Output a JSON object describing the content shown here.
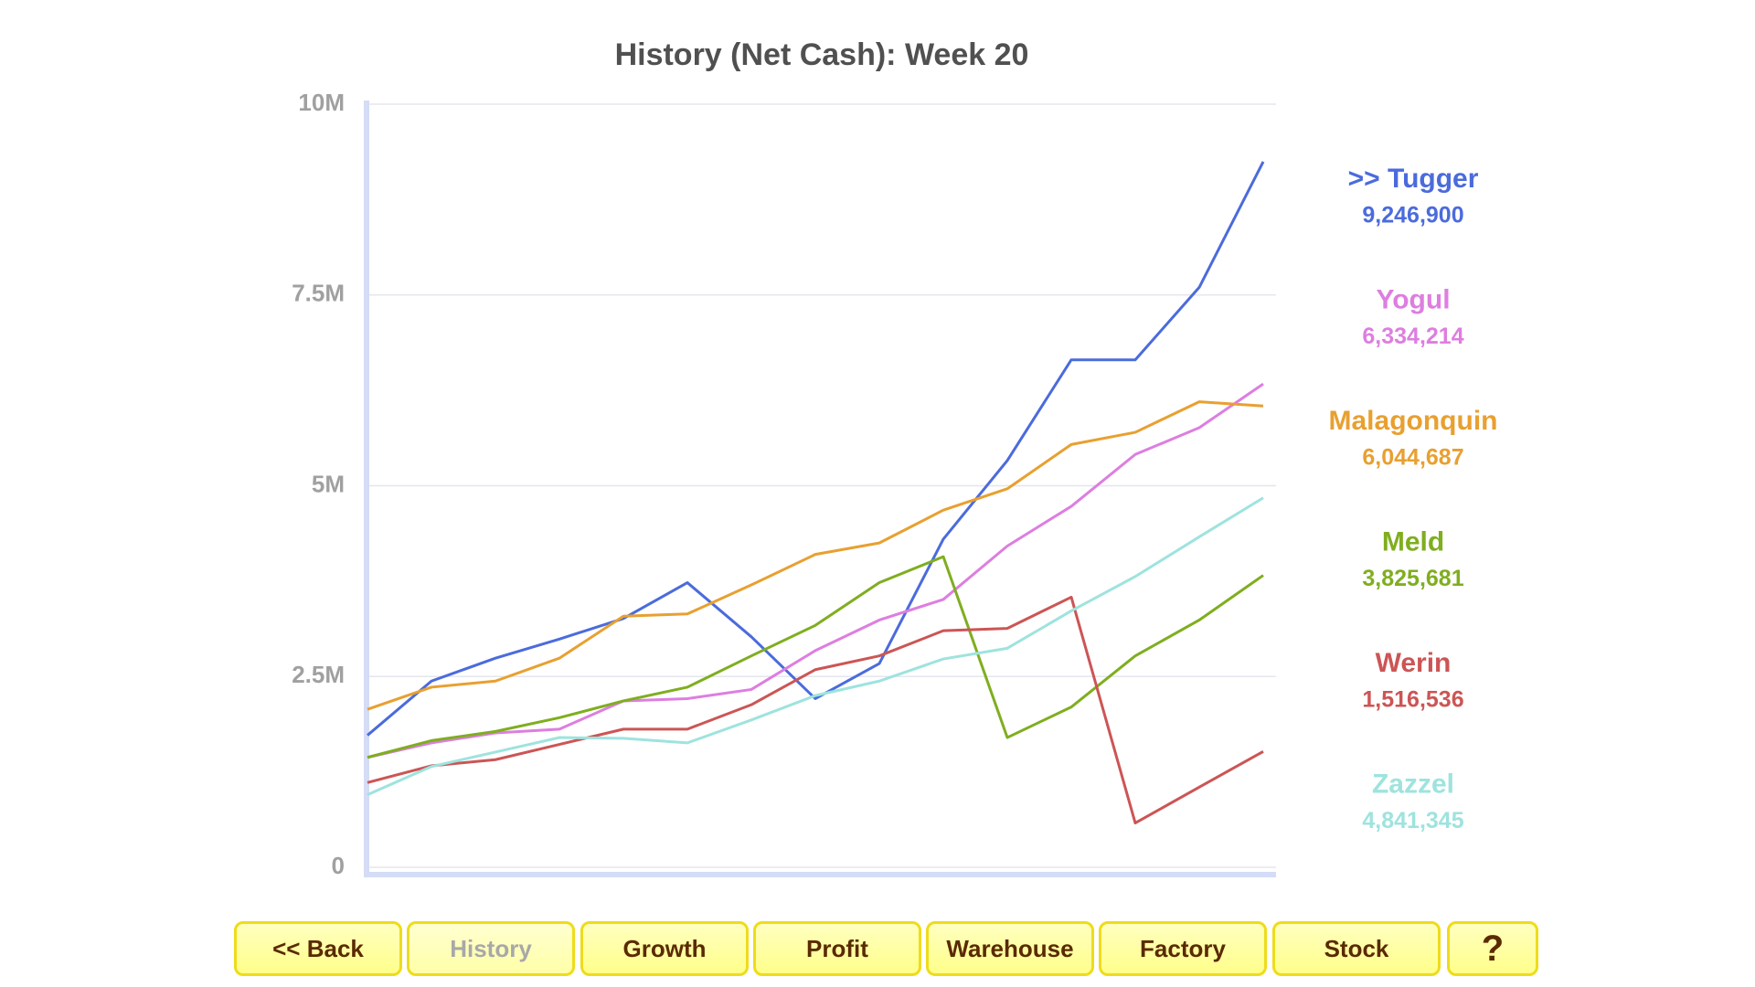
{
  "chart_data": {
    "type": "line",
    "title": "History (Net Cash): Week 20",
    "categories": [
      null,
      null,
      null,
      null,
      null,
      null,
      null,
      null,
      null,
      null,
      null,
      null,
      null,
      null,
      null
    ],
    "ylim": [
      0,
      10000000
    ],
    "yticks": [
      0,
      {
        "value": 2500000,
        "label": "2.5M"
      },
      {
        "value": 5000000,
        "label": "5M"
      },
      {
        "value": 7500000,
        "label": "7.5M"
      },
      {
        "value": 10000000,
        "label": "10M"
      }
    ],
    "grid": true,
    "series": [
      {
        "name": ">> Tugger",
        "color": "#4b6bdc",
        "values": [
          1730000,
          2440000,
          2740000,
          2990000,
          3260000,
          3730000,
          3020000,
          2210000,
          2670000,
          4300000,
          5330000,
          6650000,
          6650000,
          7600000,
          9246900
        ],
        "value_labels": [
          null,
          null,
          null,
          null,
          null,
          null,
          null,
          null,
          null,
          null,
          null,
          null,
          null,
          null,
          "9,246,900"
        ]
      },
      {
        "name": "Yogul",
        "color": "#dd7ee0",
        "values": [
          1440000,
          1630000,
          1760000,
          1810000,
          2180000,
          2210000,
          2330000,
          2840000,
          3240000,
          3510000,
          4210000,
          4730000,
          5410000,
          5760000,
          6334214
        ],
        "value_labels": [
          null,
          null,
          null,
          null,
          null,
          null,
          null,
          null,
          null,
          null,
          null,
          null,
          null,
          null,
          "6,334,214"
        ]
      },
      {
        "name": "Malagonquin",
        "color": "#e8a030",
        "values": [
          2070000,
          2360000,
          2440000,
          2740000,
          3290000,
          3320000,
          3700000,
          4100000,
          4250000,
          4680000,
          4960000,
          5540000,
          5700000,
          6100000,
          6044687
        ],
        "value_labels": [
          null,
          null,
          null,
          null,
          null,
          null,
          null,
          null,
          null,
          null,
          null,
          null,
          null,
          null,
          "6,044,687"
        ]
      },
      {
        "name": "Meld",
        "color": "#7fae1f",
        "values": [
          1440000,
          1660000,
          1780000,
          1960000,
          2180000,
          2360000,
          2770000,
          3170000,
          3730000,
          4070000,
          1700000,
          2100000,
          2770000,
          3240000,
          3825681
        ],
        "value_labels": [
          null,
          null,
          null,
          null,
          null,
          null,
          null,
          null,
          null,
          null,
          null,
          null,
          null,
          null,
          "3,825,681"
        ]
      },
      {
        "name": "Werin",
        "color": "#cc5555",
        "values": [
          1110000,
          1330000,
          1410000,
          1610000,
          1810000,
          1810000,
          2130000,
          2590000,
          2770000,
          3100000,
          3130000,
          3540000,
          580000,
          1050000,
          1516536
        ],
        "value_labels": [
          null,
          null,
          null,
          null,
          null,
          null,
          null,
          null,
          null,
          null,
          null,
          null,
          null,
          null,
          "1,516,536"
        ]
      },
      {
        "name": "Zazzel",
        "color": "#9ee3de",
        "values": [
          950000,
          1320000,
          1510000,
          1700000,
          1690000,
          1630000,
          1930000,
          2250000,
          2440000,
          2730000,
          2870000,
          3360000,
          3810000,
          4330000,
          4841345
        ],
        "value_labels": [
          null,
          null,
          null,
          null,
          null,
          null,
          null,
          null,
          null,
          null,
          null,
          null,
          null,
          null,
          "4,841,345"
        ]
      }
    ]
  },
  "nav": {
    "buttons": [
      "<< Back",
      "History",
      "Growth",
      "Profit",
      "Warehouse",
      "Factory",
      "Stock",
      "?"
    ]
  }
}
